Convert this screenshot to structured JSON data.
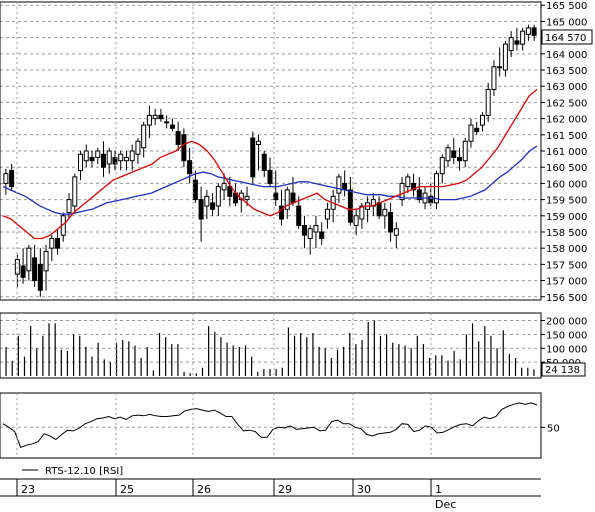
{
  "colors": {
    "frame": "#000000",
    "grid": "#9a9a9a",
    "candle": "#000000",
    "ma_fast": "#e00000",
    "ma_slow": "#1f2fbf",
    "volume": "#000000",
    "rsi": "#000000"
  },
  "chart_data": [
    {
      "type": "candlestick",
      "panel": "price",
      "ylim": [
        156400,
        165600
      ],
      "y_ticks": [
        "156 500",
        "157 000",
        "157 500",
        "158 000",
        "158 500",
        "159 000",
        "159 500",
        "160 000",
        "160 500",
        "161 000",
        "161 500",
        "162 000",
        "162 500",
        "163 000",
        "163 500",
        "164 000",
        "164 500",
        "165 000",
        "165 500"
      ],
      "last_value": "164 570",
      "grid": true,
      "candles": [
        [
          160000,
          160450,
          159650,
          160300
        ],
        [
          160400,
          160600,
          159800,
          159900
        ],
        [
          157200,
          157800,
          156800,
          157650
        ],
        [
          157450,
          158000,
          156900,
          157100
        ],
        [
          157300,
          158100,
          157000,
          158000
        ],
        [
          157700,
          158100,
          156800,
          157000
        ],
        [
          157500,
          158000,
          156500,
          156700
        ],
        [
          157300,
          158100,
          156700,
          157900
        ],
        [
          158000,
          158400,
          157600,
          158300
        ],
        [
          158300,
          158600,
          157800,
          158000
        ],
        [
          158400,
          159100,
          158200,
          159000
        ],
        [
          159100,
          159700,
          158900,
          159500
        ],
        [
          159300,
          160300,
          159100,
          160200
        ],
        [
          160400,
          161000,
          160100,
          160900
        ],
        [
          160700,
          161200,
          160500,
          161000
        ],
        [
          160800,
          161000,
          160500,
          160700
        ],
        [
          160800,
          161100,
          160600,
          161000
        ],
        [
          160900,
          161300,
          160200,
          160500
        ],
        [
          160600,
          161100,
          160300,
          161000
        ],
        [
          160800,
          161000,
          160400,
          160600
        ],
        [
          160700,
          161000,
          160400,
          160900
        ],
        [
          160700,
          161000,
          160400,
          160800
        ],
        [
          160700,
          161200,
          160400,
          161000
        ],
        [
          160900,
          161400,
          160600,
          161300
        ],
        [
          161100,
          161900,
          160800,
          161800
        ],
        [
          161800,
          162400,
          161400,
          162100
        ],
        [
          162000,
          162300,
          161800,
          162100
        ],
        [
          162100,
          162300,
          161900,
          162000
        ],
        [
          161900,
          162100,
          161700,
          161900
        ],
        [
          161800,
          162000,
          161600,
          161700
        ],
        [
          161600,
          161900,
          161000,
          161200
        ],
        [
          161500,
          161700,
          160500,
          160700
        ],
        [
          160700,
          161100,
          160000,
          160300
        ],
        [
          160100,
          160400,
          159400,
          159500
        ],
        [
          159500,
          159900,
          158200,
          158900
        ],
        [
          159300,
          159800,
          158900,
          159600
        ],
        [
          159400,
          159700,
          159000,
          159200
        ],
        [
          159300,
          160000,
          159000,
          159900
        ],
        [
          159800,
          160300,
          159500,
          160000
        ],
        [
          159900,
          160200,
          159300,
          159600
        ],
        [
          159700,
          160000,
          159300,
          159400
        ],
        [
          159500,
          159800,
          159100,
          159700
        ],
        [
          159500,
          159900,
          159300,
          159600
        ],
        [
          161400,
          161600,
          160000,
          160200
        ],
        [
          161200,
          161500,
          160400,
          161300
        ],
        [
          160900,
          161000,
          160200,
          160400
        ],
        [
          160400,
          160800,
          159900,
          160000
        ],
        [
          159700,
          160400,
          159300,
          159500
        ],
        [
          159300,
          159800,
          158700,
          158900
        ],
        [
          159200,
          159900,
          158900,
          159800
        ],
        [
          159700,
          160200,
          159300,
          159400
        ],
        [
          159300,
          159600,
          158600,
          158700
        ],
        [
          158700,
          159000,
          158000,
          158400
        ],
        [
          158300,
          158700,
          157800,
          158600
        ],
        [
          158500,
          159000,
          158000,
          158700
        ],
        [
          158500,
          158800,
          158100,
          158300
        ],
        [
          158900,
          159400,
          158600,
          159200
        ],
        [
          159200,
          159800,
          158800,
          159600
        ],
        [
          159700,
          160300,
          159400,
          160200
        ],
        [
          160000,
          160400,
          159600,
          159800
        ],
        [
          159800,
          160200,
          158700,
          158800
        ],
        [
          158700,
          159200,
          158400,
          159000
        ],
        [
          158900,
          159400,
          158600,
          159300
        ],
        [
          159200,
          159600,
          158800,
          159400
        ],
        [
          159300,
          159700,
          159000,
          159500
        ],
        [
          159400,
          159600,
          158900,
          159000
        ],
        [
          159000,
          159400,
          158600,
          159200
        ],
        [
          159100,
          159400,
          158200,
          158500
        ],
        [
          158400,
          158800,
          158000,
          158600
        ],
        [
          159500,
          160200,
          159300,
          160000
        ],
        [
          159900,
          160300,
          159700,
          160200
        ],
        [
          160000,
          160300,
          159600,
          159800
        ],
        [
          159800,
          160200,
          159400,
          159500
        ],
        [
          159400,
          159900,
          159200,
          159700
        ],
        [
          159600,
          160000,
          159300,
          159400
        ],
        [
          159400,
          160400,
          159200,
          160300
        ],
        [
          160300,
          160900,
          160000,
          160800
        ],
        [
          160700,
          161200,
          160500,
          161100
        ],
        [
          161000,
          161400,
          160600,
          160800
        ],
        [
          160800,
          161100,
          160400,
          160700
        ],
        [
          160700,
          161400,
          160500,
          161300
        ],
        [
          161300,
          162000,
          161100,
          161800
        ],
        [
          161700,
          161900,
          161500,
          161600
        ],
        [
          161800,
          162200,
          161600,
          162100
        ],
        [
          162100,
          163100,
          161900,
          162900
        ],
        [
          162900,
          163800,
          162700,
          163600
        ],
        [
          163600,
          164200,
          163300,
          163600
        ],
        [
          163500,
          164400,
          163300,
          164300
        ],
        [
          164100,
          164700,
          163900,
          164500
        ],
        [
          164400,
          164800,
          164100,
          164300
        ],
        [
          164300,
          164800,
          164100,
          164700
        ],
        [
          164600,
          164900,
          164400,
          164800
        ],
        [
          164800,
          164900,
          164400,
          164570
        ]
      ],
      "ma_fast": [
        159000,
        158900,
        158700,
        158500,
        158300,
        158300,
        158400,
        158600,
        158800,
        159100,
        159300,
        159500,
        159700,
        159900,
        160100,
        160200,
        160300,
        160400,
        160500,
        160600,
        160800,
        160900,
        161000,
        161200,
        161300,
        161200,
        161000,
        160700,
        160300,
        159900,
        159600,
        159400,
        159200,
        159100,
        159000,
        159100,
        159300,
        159400,
        159500,
        159600,
        159700,
        159500,
        159400,
        159300,
        159200,
        159200,
        159300,
        159300,
        159400,
        159500,
        159600,
        159700,
        159800,
        159900,
        159900,
        159900,
        159900,
        159950,
        160000,
        160100,
        160300,
        160500,
        160800,
        161100,
        161500,
        161900,
        162300,
        162700,
        162900
      ],
      "ma_slow": [
        159900,
        159800,
        159700,
        159600,
        159450,
        159300,
        159200,
        159100,
        159050,
        159050,
        159100,
        159150,
        159200,
        159300,
        159400,
        159450,
        159500,
        159550,
        159600,
        159650,
        159700,
        159800,
        159900,
        160000,
        160100,
        160200,
        160300,
        160350,
        160300,
        160200,
        160150,
        160100,
        160050,
        160000,
        159950,
        159900,
        159900,
        159900,
        159950,
        160000,
        160050,
        160050,
        160000,
        159950,
        159900,
        159850,
        159800,
        159750,
        159700,
        159650,
        159650,
        159650,
        159600,
        159600,
        159550,
        159550,
        159550,
        159550,
        159550,
        159500,
        159500,
        159500,
        159550,
        159600,
        159700,
        159800,
        160000,
        160200,
        160350,
        160550,
        160750,
        161000,
        161150
      ]
    },
    {
      "type": "bar",
      "panel": "volume",
      "ylim": [
        0,
        220000
      ],
      "y_ticks": [
        "50 000",
        "100 000",
        "150 000",
        "200 000"
      ],
      "last_value": "24 138",
      "values": [
        105000,
        55000,
        145000,
        70000,
        180000,
        100000,
        145000,
        190000,
        190000,
        95000,
        90000,
        150000,
        145000,
        105000,
        70000,
        120000,
        60000,
        50000,
        120000,
        130000,
        125000,
        110000,
        65000,
        105000,
        20000,
        155000,
        140000,
        115000,
        115000,
        15000,
        10000,
        10000,
        30000,
        180000,
        160000,
        140000,
        120000,
        110000,
        105000,
        110000,
        70000,
        15000,
        25000,
        25000,
        25000,
        30000,
        175000,
        145000,
        155000,
        140000,
        155000,
        105000,
        100000,
        65000,
        95000,
        105000,
        155000,
        115000,
        130000,
        195000,
        200000,
        145000,
        150000,
        120000,
        115000,
        110000,
        100000,
        145000,
        115000,
        65000,
        75000,
        75000,
        55000,
        90000,
        60000,
        150000,
        190000,
        125000,
        180000,
        145000,
        100000,
        165000,
        80000,
        65000,
        30000,
        30000,
        24138
      ]
    },
    {
      "type": "line",
      "panel": "rsi",
      "ylim": [
        10,
        95
      ],
      "y_ticks": [
        "50"
      ],
      "series": [
        {
          "name": "RTS-12.10 [RSI]",
          "values": [
            55,
            50,
            44,
            22,
            25,
            27,
            30,
            41,
            38,
            33,
            40,
            46,
            45,
            49,
            55,
            58,
            62,
            63,
            65,
            62,
            64,
            61,
            66,
            67,
            66,
            68,
            66,
            65,
            65,
            66,
            67,
            73,
            75,
            76,
            74,
            72,
            74,
            70,
            65,
            65,
            54,
            45,
            46,
            44,
            36,
            36,
            47,
            50,
            49,
            52,
            47,
            48,
            49,
            50,
            45,
            46,
            58,
            60,
            55,
            55,
            50,
            48,
            40,
            38,
            41,
            42,
            43,
            47,
            55,
            54,
            44,
            46,
            52,
            50,
            42,
            43,
            47,
            51,
            54,
            55,
            52,
            59,
            64,
            62,
            65,
            75,
            79,
            82,
            84,
            82,
            84,
            81
          ]
        }
      ]
    }
  ],
  "x_axis": {
    "labels": [
      "23",
      "25",
      "26",
      "29",
      "30",
      "1"
    ],
    "month": "Dec"
  }
}
